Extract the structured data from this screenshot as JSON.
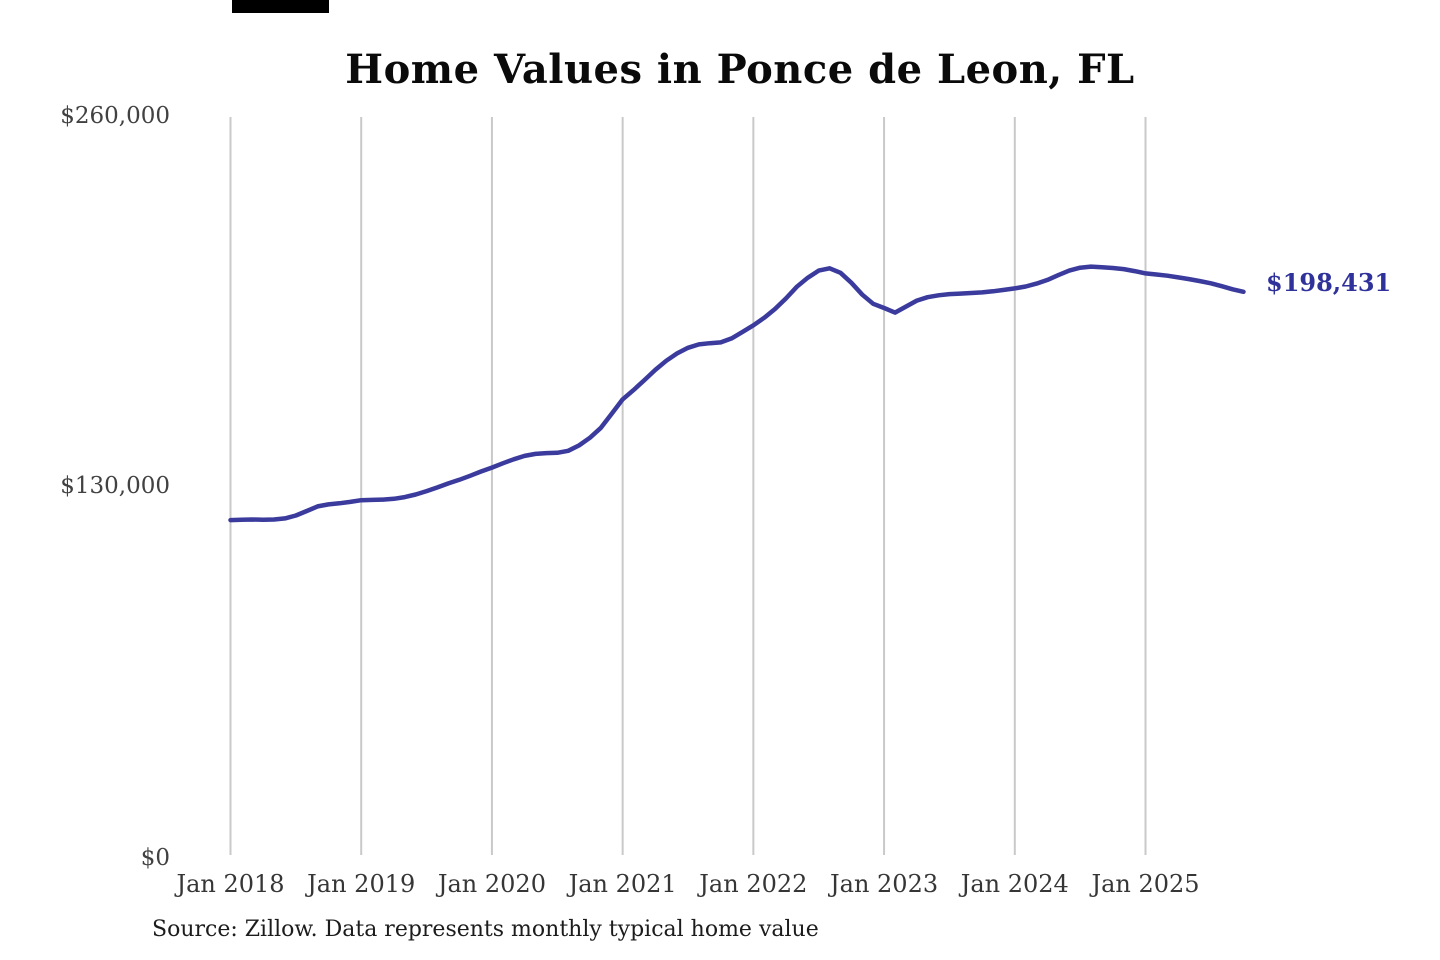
{
  "ui": {
    "title": "Home Values in Ponce de Leon, FL",
    "end_label": "$198,431",
    "source_note": "Source: Zillow. Data represents monthly typical home value",
    "progress_bar_color": "#000000",
    "colors": {
      "background": "#ffffff",
      "line": "#3b3b9d",
      "end_label": "#2f329a",
      "gridline": "#c9c9c9",
      "y_tick_text": "#414141",
      "x_tick_text": "#363636",
      "title_text": "#0a0a0a",
      "source_text": "#1c1c1c"
    }
  },
  "chart_data": {
    "type": "line",
    "title": "Home Values in Ponce de Leon, FL",
    "xlabel": "",
    "ylabel": "",
    "ylim": [
      0,
      260000
    ],
    "y_tick_labels": [
      "$260,000",
      "$130,000",
      "$0"
    ],
    "y_tick_values": [
      260000,
      130000,
      0
    ],
    "x_tick_labels": [
      "Jan 2018",
      "Jan 2019",
      "Jan 2020",
      "Jan 2021",
      "Jan 2022",
      "Jan 2023",
      "Jan 2024",
      "Jan 2025"
    ],
    "grid": "vertical-only",
    "legend": "none",
    "final_value": 198431,
    "final_value_label": "$198,431",
    "series": [
      {
        "name": "Monthly typical home value",
        "unit": "USD",
        "months": [
          "2018-01",
          "2018-02",
          "2018-03",
          "2018-04",
          "2018-05",
          "2018-06",
          "2018-07",
          "2018-08",
          "2018-09",
          "2018-10",
          "2018-11",
          "2018-12",
          "2019-01",
          "2019-02",
          "2019-03",
          "2019-04",
          "2019-05",
          "2019-06",
          "2019-07",
          "2019-08",
          "2019-09",
          "2019-10",
          "2019-11",
          "2019-12",
          "2020-01",
          "2020-02",
          "2020-03",
          "2020-04",
          "2020-05",
          "2020-06",
          "2020-07",
          "2020-08",
          "2020-09",
          "2020-10",
          "2020-11",
          "2020-12",
          "2021-01",
          "2021-02",
          "2021-03",
          "2021-04",
          "2021-05",
          "2021-06",
          "2021-07",
          "2021-08",
          "2021-09",
          "2021-10",
          "2021-11",
          "2021-12",
          "2022-01",
          "2022-02",
          "2022-03",
          "2022-04",
          "2022-05",
          "2022-06",
          "2022-07",
          "2022-08",
          "2022-09",
          "2022-10",
          "2022-11",
          "2022-12",
          "2023-01",
          "2023-02",
          "2023-03",
          "2023-04",
          "2023-05",
          "2023-06",
          "2023-07",
          "2023-08",
          "2023-09",
          "2023-10",
          "2023-11",
          "2023-12",
          "2024-01",
          "2024-02",
          "2024-03",
          "2024-04",
          "2024-05",
          "2024-06",
          "2024-07",
          "2024-08",
          "2024-09",
          "2024-10",
          "2024-11",
          "2024-12",
          "2025-01",
          "2025-02",
          "2025-03",
          "2025-04",
          "2025-05",
          "2025-06",
          "2025-07",
          "2025-08",
          "2025-09",
          "2025-10"
        ],
        "values": [
          118000,
          118100,
          118200,
          118100,
          118200,
          118600,
          119600,
          121200,
          122800,
          123500,
          123900,
          124400,
          125000,
          125100,
          125200,
          125500,
          126100,
          127000,
          128200,
          129500,
          130900,
          132200,
          133600,
          135100,
          136500,
          138000,
          139400,
          140600,
          141300,
          141600,
          141700,
          142400,
          144300,
          147000,
          150500,
          155500,
          160500,
          163800,
          167300,
          170900,
          174100,
          176700,
          178700,
          179900,
          180300,
          180600,
          182000,
          184300,
          186600,
          189300,
          192400,
          196100,
          200200,
          203400,
          205900,
          206700,
          205100,
          201600,
          197400,
          194200,
          192700,
          191100,
          193200,
          195300,
          196500,
          197200,
          197600,
          197800,
          198000,
          198200,
          198600,
          199100,
          199600,
          200300,
          201300,
          202600,
          204300,
          205900,
          206900,
          207300,
          207100,
          206800,
          206400,
          205700,
          204900,
          204500,
          204100,
          203500,
          202900,
          202200,
          201400,
          200400,
          199300,
          198431
        ]
      }
    ]
  }
}
